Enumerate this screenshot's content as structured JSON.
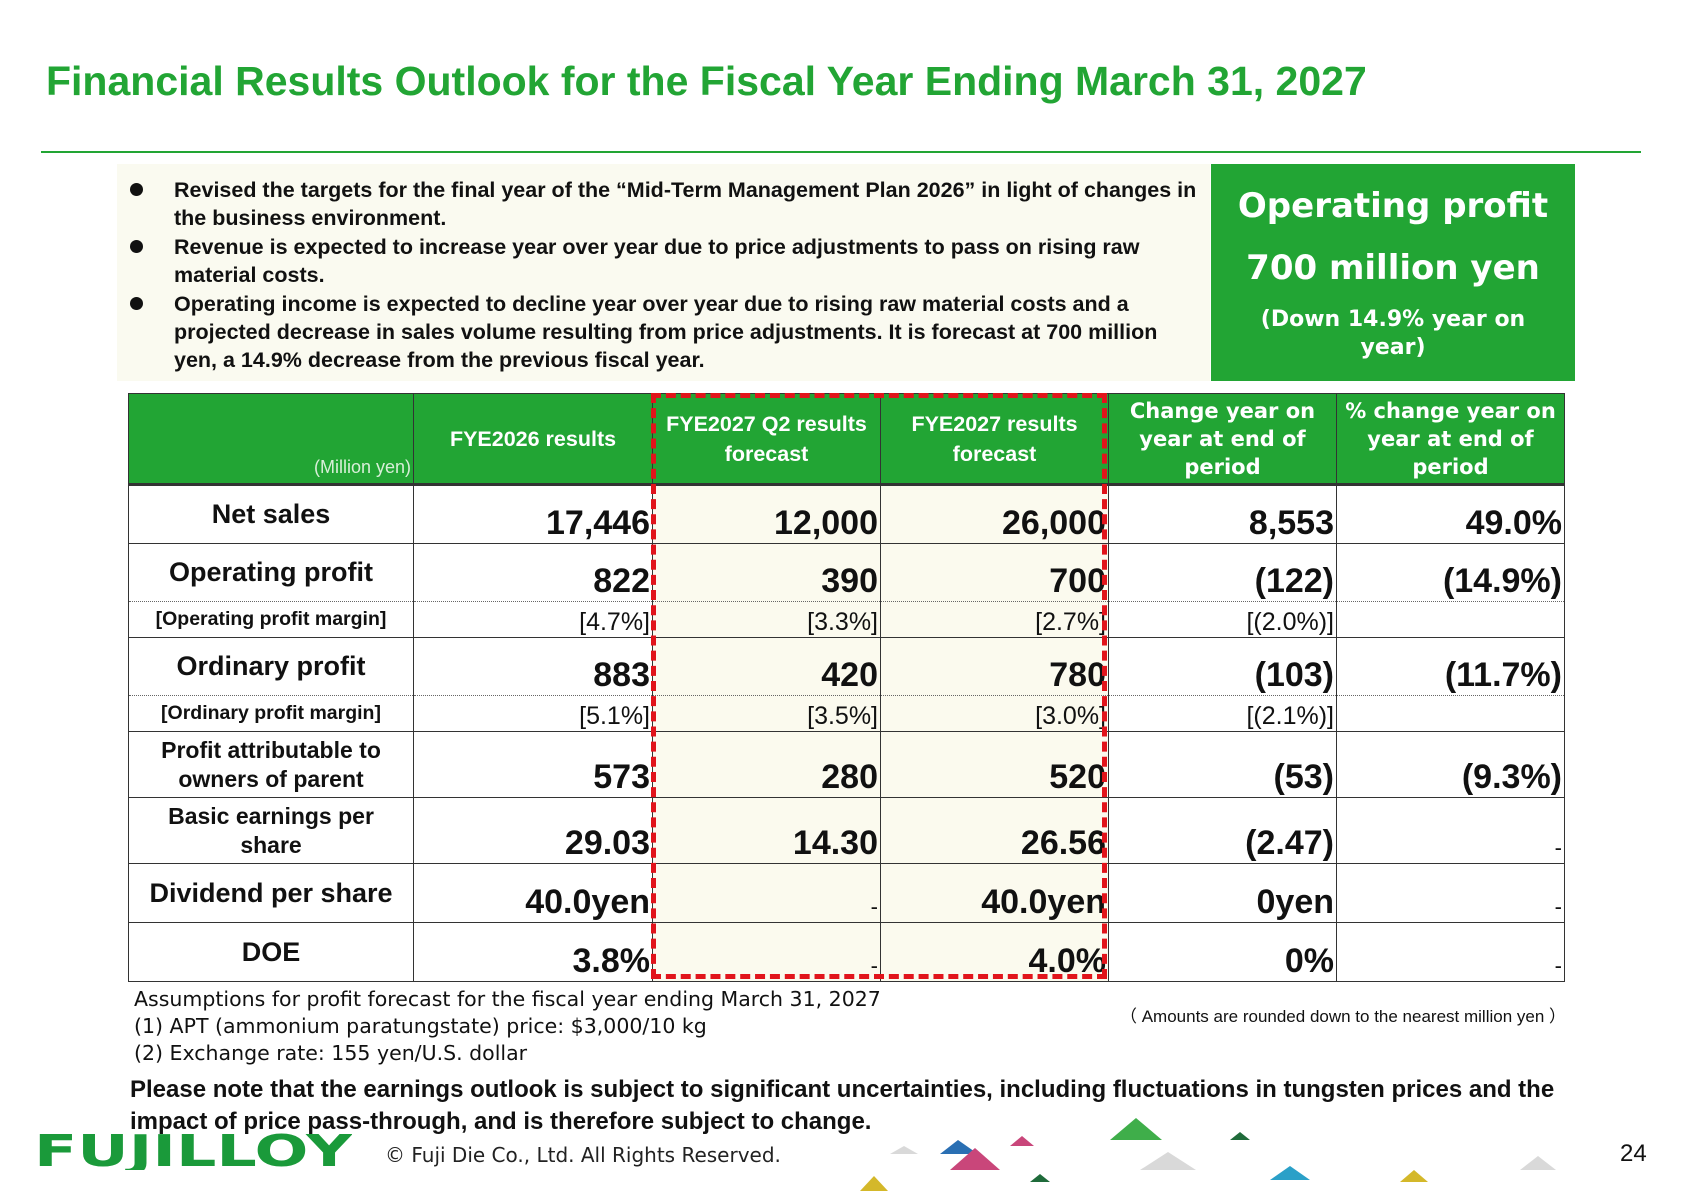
{
  "title": "Financial Results Outlook for the Fiscal Year Ending March 31, 2027",
  "bullets": [
    "Revised the targets for the final year of the “Mid-Term Management Plan 2026” in light of changes in the business environment.",
    "Revenue is expected to increase year over year due to price adjustments to pass on rising raw material costs.",
    "Operating income is expected to decline year over year due to rising raw material costs and a projected decrease in sales volume resulting from price adjustments. It is forecast at 700 million yen, a 14.9% decrease from the previous fiscal year."
  ],
  "highlight": {
    "line1": "Operating profit",
    "line2": "700 million yen",
    "line3": "(Down 14.9% year on year)",
    "color": "#22a534"
  },
  "table": {
    "unit_label": "(Million yen)",
    "headers": [
      "FYE2026 results",
      "FYE2027 Q2 results forecast",
      "FYE2027 results forecast",
      "Change year on year at end of period",
      "% change year on year at end of period"
    ],
    "rows": {
      "net_sales": {
        "label": "Net sales",
        "values": [
          "17,446",
          "12,000",
          "26,000",
          "8,553",
          "49.0%"
        ]
      },
      "operating_profit": {
        "label": "Operating profit",
        "values": [
          "822",
          "390",
          "700",
          "(122)",
          "(14.9%)"
        ]
      },
      "operating_margin": {
        "label": "[Operating profit margin]",
        "values": [
          "[4.7%]",
          "[3.3%]",
          "[2.7%]",
          "[(2.0%)]",
          ""
        ]
      },
      "ordinary_profit": {
        "label": "Ordinary profit",
        "values": [
          "883",
          "420",
          "780",
          "(103)",
          "(11.7%)"
        ]
      },
      "ordinary_margin": {
        "label": "[Ordinary profit margin]",
        "values": [
          "[5.1%]",
          "[3.5%]",
          "[3.0%]",
          "[(2.1%)]",
          ""
        ]
      },
      "profit_parent": {
        "label": "Profit attributable to owners of parent",
        "values": [
          "573",
          "280",
          "520",
          "(53)",
          "(9.3%)"
        ]
      },
      "eps": {
        "label": "Basic earnings per share",
        "values": [
          "29.03",
          "14.30",
          "26.56",
          "(2.47)",
          "-"
        ]
      },
      "dividend": {
        "label": "Dividend per share",
        "values": [
          "40.0yen",
          "-",
          "40.0yen",
          "0yen",
          "-"
        ]
      },
      "doe": {
        "label": "DOE",
        "values": [
          "3.8%",
          "-",
          "4.0%",
          "0%",
          "-"
        ]
      }
    },
    "highlight_color": "#e1141b"
  },
  "assumptions": {
    "title": "Assumptions for profit forecast for the fiscal year ending March 31, 2027",
    "line1": "(1) APT (ammonium paratungstate) price: $3,000/10 kg",
    "line2": "(2) Exchange rate: 155 yen/U.S. dollar"
  },
  "rounding_note": "（ Amounts are rounded down to the nearest million yen ）",
  "disclaimer": "Please note that the earnings outlook is subject to significant uncertainties, including fluctuations in tungsten prices and the impact of price pass-through, and is therefore subject to change.",
  "footer": {
    "logo_text": "FUJILLOY",
    "copyright": "© Fuji Die Co., Ltd. All Rights Reserved.",
    "page_number": "24"
  }
}
